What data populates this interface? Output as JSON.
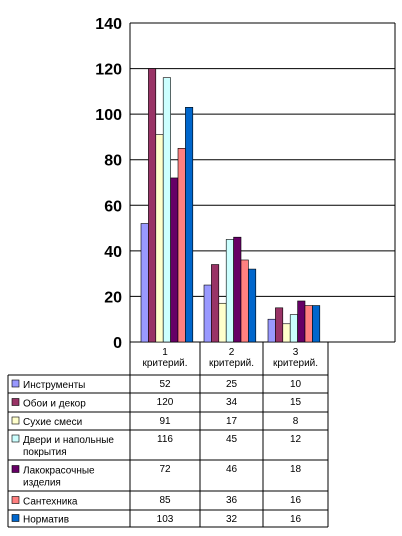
{
  "chart_data": {
    "type": "bar",
    "categories": [
      [
        "1",
        "критерий."
      ],
      [
        "2",
        "критерий."
      ],
      [
        "3",
        "критерий."
      ]
    ],
    "ylim": [
      0,
      140
    ],
    "yticks": [
      "0",
      "20",
      "40",
      "60",
      "80",
      "100",
      "120",
      "140"
    ],
    "grid": true,
    "legend": "data-table-below",
    "series": [
      {
        "name": [
          "Инструменты"
        ],
        "values": [
          52,
          25,
          10
        ],
        "color": "#9999ff",
        "values_text": [
          "52",
          "25",
          "10"
        ]
      },
      {
        "name": [
          "Обои и декор"
        ],
        "values": [
          120,
          34,
          15
        ],
        "color": "#993366",
        "values_text": [
          "120",
          "34",
          "15"
        ]
      },
      {
        "name": [
          "Сухие смеси"
        ],
        "values": [
          91,
          17,
          8
        ],
        "color": "#ffffcc",
        "values_text": [
          "91",
          "17",
          "8"
        ]
      },
      {
        "name": [
          "Двери и напольные",
          "покрытия"
        ],
        "values": [
          116,
          45,
          12
        ],
        "color": "#ccffff",
        "values_text": [
          "116",
          "45",
          "12"
        ]
      },
      {
        "name": [
          "Лакокрасочные",
          "изделия"
        ],
        "values": [
          72,
          46,
          18
        ],
        "color": "#660066",
        "values_text": [
          "72",
          "46",
          "18"
        ]
      },
      {
        "name": [
          "Сантехника"
        ],
        "values": [
          85,
          36,
          16
        ],
        "color": "#ff8080",
        "values_text": [
          "85",
          "36",
          "16"
        ]
      },
      {
        "name": [
          "Норматив"
        ],
        "values": [
          103,
          32,
          16
        ],
        "color": "#0066cc",
        "values_text": [
          "103",
          "32",
          "16"
        ]
      }
    ]
  }
}
